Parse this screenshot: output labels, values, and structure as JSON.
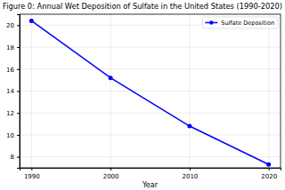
{
  "chart_data": {
    "type": "line",
    "title": "Figure 0: Annual Wet Deposition of Sulfate in the United States (1990-2020)",
    "x_label": "Year",
    "x": [
      1990,
      2000,
      2010,
      2020
    ],
    "series": [
      {
        "name": "Sulfate Deposition",
        "color": "#0000ff",
        "values": [
          20.4,
          15.2,
          10.8,
          7.3
        ],
        "marker": "circle",
        "line_style": "solid"
      }
    ],
    "xlim": [
      1988.5,
      2021.5
    ],
    "xticks": [
      1990,
      2000,
      2010,
      2020
    ],
    "ylim": [
      7.0,
      21.0
    ],
    "yticks": [
      8,
      10,
      12,
      14,
      16,
      18,
      20
    ],
    "grid": true,
    "legend": "upper right"
  }
}
